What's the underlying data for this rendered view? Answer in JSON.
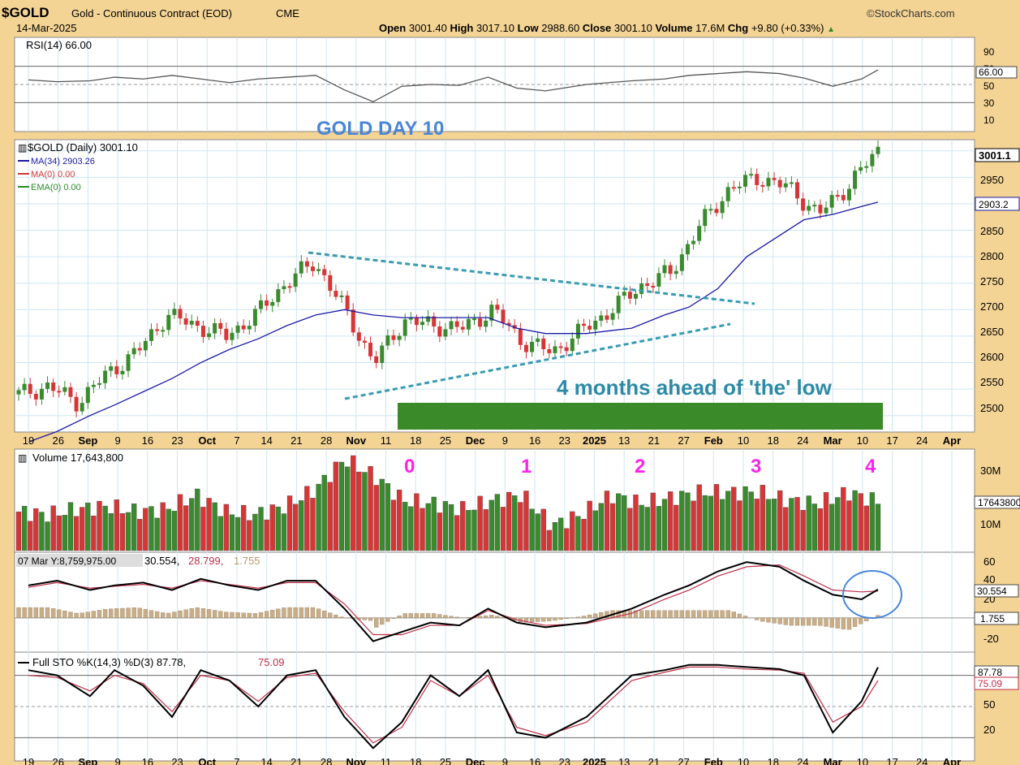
{
  "header": {
    "symbol": "$GOLD",
    "name": "Gold - Continuous Contract (EOD)",
    "exchange": "CME",
    "date": "14-Mar-2025",
    "logo": "©StockCharts.com",
    "open_label": "Open",
    "open": "3001.40",
    "high_label": "High",
    "high": "3017.10",
    "low_label": "Low",
    "low": "2988.60",
    "close_label": "Close",
    "close": "3001.10",
    "volume_label": "Volume",
    "volume": "17.6M",
    "chg_label": "Chg",
    "chg": "+9.80 (+0.33%)"
  },
  "panels": {
    "rsi_label": "RSI(14) 66.00",
    "rsi_ticks": [
      "90",
      "70",
      "50",
      "30",
      "10"
    ],
    "rsi_value": "66.00",
    "title_text": "GOLD DAY 10",
    "price_label": "$GOLD (Daily) 3001.10",
    "ma34_label": "MA(34) 2903.26",
    "ma0_label": "MA(0) 0.00",
    "ema0_label": "EMA(0) 0.00",
    "price_ticks": [
      "2950",
      "2900",
      "2850",
      "2800",
      "2750",
      "2700",
      "2650",
      "2600",
      "2550",
      "2500"
    ],
    "price_value": "3001.1",
    "ma_value": "2903.2",
    "annotation": "4 months ahead of 'the' low",
    "volume_label": "Volume 17,643,800",
    "volume_ticks": [
      "30M",
      "20M",
      "10M"
    ],
    "volume_value": "17643800",
    "cycle_labels": [
      "0",
      "1",
      "2",
      "3",
      "4"
    ],
    "macd_label": "07 Mar Y:8,759,975.00",
    "macd_values": [
      "30.554,",
      "28.799,",
      "1.755"
    ],
    "macd_ticks": [
      "60",
      "40",
      "20",
      "-20"
    ],
    "macd_value": "30.554",
    "macd_hist_value": "1.755",
    "sto_label": "Full STO %K(14,3) %D(3) 87.78,",
    "sto_d_label": "75.09",
    "sto_ticks": [
      "50",
      "20"
    ],
    "sto_k_value": "87.78",
    "sto_d_value": "75.09"
  },
  "x_axis_labels": [
    "19",
    "26",
    "Sep",
    "9",
    "16",
    "23",
    "Oct",
    "7",
    "14",
    "21",
    "28",
    "Nov",
    "11",
    "18",
    "25",
    "Dec",
    "9",
    "16",
    "23",
    "2025",
    "13",
    "21",
    "27",
    "Feb",
    "10",
    "18",
    "24",
    "Mar",
    "10",
    "17",
    "24",
    "Apr"
  ],
  "colors": {
    "up": "#3a8a2e",
    "down": "#d63636",
    "ma34": "#1a1aa6",
    "trend": "#3a9bb0",
    "green_bar": "#3b8a2a",
    "cycle": "#ff22ee",
    "title": "#4a86d8",
    "annotation": "#2d8aa6"
  },
  "chart_data": {
    "type": "line",
    "title": "$GOLD (Daily) 3001.10",
    "x": [
      "2024-08-19",
      "2024-08-26",
      "2024-09-03",
      "2024-09-09",
      "2024-09-16",
      "2024-09-23",
      "2024-09-30",
      "2024-10-07",
      "2024-10-14",
      "2024-10-21",
      "2024-10-28",
      "2024-11-04",
      "2024-11-11",
      "2024-11-18",
      "2024-11-25",
      "2024-12-02",
      "2024-12-09",
      "2024-12-16",
      "2024-12-23",
      "2025-01-02",
      "2025-01-13",
      "2025-01-21",
      "2025-01-27",
      "2025-02-03",
      "2025-02-10",
      "2025-02-18",
      "2025-02-24",
      "2025-03-03",
      "2025-03-10",
      "2025-03-14"
    ],
    "series": [
      {
        "name": "$GOLD",
        "values": [
          2540,
          2555,
          2525,
          2580,
          2620,
          2690,
          2670,
          2650,
          2690,
          2750,
          2790,
          2700,
          2600,
          2680,
          2670,
          2665,
          2700,
          2640,
          2620,
          2660,
          2700,
          2745,
          2770,
          2860,
          2930,
          2950,
          2930,
          2880,
          2935,
          3001.1
        ]
      },
      {
        "name": "MA(34)",
        "values": [
          2450,
          2470,
          2500,
          2520,
          2545,
          2570,
          2600,
          2625,
          2645,
          2670,
          2690,
          2700,
          2690,
          2685,
          2685,
          2685,
          2685,
          2665,
          2655,
          2655,
          2665,
          2690,
          2705,
          2740,
          2800,
          2840,
          2870,
          2880,
          2895,
          2903.26
        ]
      }
    ],
    "ylim": [
      2475,
      3015
    ],
    "volume": [
      14,
      13,
      15,
      16,
      14,
      15,
      20,
      14,
      13,
      16,
      22,
      33,
      27,
      18,
      17,
      15,
      18,
      20,
      9,
      13,
      20,
      17,
      19,
      21,
      21,
      21,
      18,
      17,
      21,
      17.6
    ],
    "rsi": [
      55,
      53,
      54,
      58,
      56,
      60,
      56,
      52,
      56,
      58,
      60,
      44,
      31,
      48,
      50,
      49,
      58,
      46,
      43,
      50,
      54,
      56,
      60,
      62,
      64,
      62,
      57,
      48,
      56,
      66
    ],
    "macd": [
      35,
      40,
      30,
      35,
      38,
      30,
      42,
      35,
      30,
      40,
      40,
      10,
      -25,
      -15,
      -5,
      -8,
      10,
      -5,
      -10,
      -5,
      10,
      25,
      35,
      50,
      60,
      55,
      40,
      25,
      20,
      30.554
    ],
    "macd_signal": [
      33,
      38,
      32,
      34,
      36,
      32,
      40,
      36,
      32,
      38,
      38,
      15,
      -18,
      -18,
      -8,
      -8,
      8,
      -2,
      -8,
      -6,
      5,
      20,
      30,
      45,
      55,
      57,
      45,
      30,
      28,
      28.799
    ],
    "sto_k": [
      85,
      80,
      60,
      85,
      70,
      40,
      85,
      75,
      50,
      80,
      85,
      40,
      10,
      35,
      80,
      60,
      85,
      25,
      20,
      40,
      80,
      85,
      90,
      90,
      88,
      86,
      80,
      25,
      55,
      87.78
    ],
    "sto_d": [
      80,
      78,
      65,
      80,
      72,
      45,
      80,
      75,
      55,
      78,
      82,
      45,
      15,
      30,
      75,
      60,
      80,
      30,
      22,
      35,
      75,
      83,
      88,
      88,
      86,
      85,
      82,
      35,
      50,
      75.09
    ]
  }
}
